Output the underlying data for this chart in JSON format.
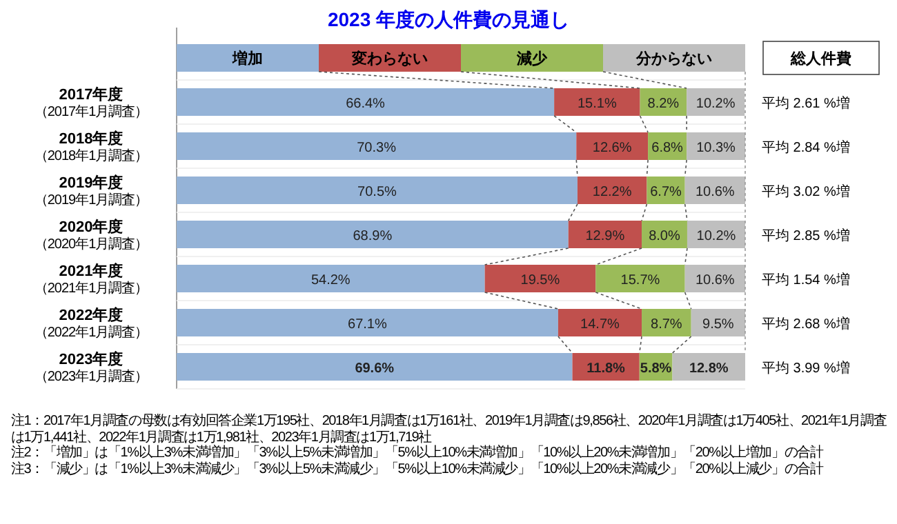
{
  "chart_data": {
    "type": "bar",
    "title": "2023 年度の人件費の見通し",
    "orientation": "horizontal",
    "stacked": true,
    "legend": "top",
    "xlim": [
      0,
      100
    ],
    "tick_labels": "y",
    "categories": [
      "2017年度（2017年1月調査）",
      "2018年度（2018年1月調査）",
      "2019年度（2019年1月調査）",
      "2020年度（2020年1月調査）",
      "2021年度（2021年1月調査）",
      "2022年度（2022年1月調査）",
      "2023年度（2023年1月調査）"
    ],
    "y2label": "総人件費",
    "y2_categories": [
      "平均 2.61 %増",
      "平均 2.84 %増",
      "平均 3.02 %増",
      "平均 2.85 %増",
      "平均 1.54 %増",
      "平均 2.68 %増",
      "平均 3.99 %増"
    ],
    "series": [
      {
        "name": "増加",
        "color": "#95b3d7",
        "values": [
          66.4,
          70.3,
          70.5,
          68.9,
          54.2,
          67.1,
          69.6
        ],
        "value_labels": [
          "66.4%",
          "70.3%",
          "70.5%",
          "68.9%",
          "54.2%",
          "67.1%",
          "69.6%"
        ]
      },
      {
        "name": "変わらない",
        "color": "#c0504d",
        "values": [
          15.1,
          12.6,
          12.2,
          12.9,
          19.5,
          14.7,
          11.8
        ],
        "value_labels": [
          "15.1%",
          "12.6%",
          "12.2%",
          "12.9%",
          "19.5%",
          "14.7%",
          "11.8%"
        ]
      },
      {
        "name": "減少",
        "color": "#9bbb59",
        "values": [
          8.2,
          6.8,
          6.7,
          8.0,
          15.7,
          8.7,
          5.8
        ],
        "value_labels": [
          "8.2%",
          "6.8%",
          "6.7%",
          "8.0%",
          "15.7%",
          "8.7%",
          "5.8%"
        ]
      },
      {
        "name": "分からない",
        "color": "#bfbfbf",
        "values": [
          10.2,
          10.3,
          10.6,
          10.2,
          10.6,
          9.5,
          12.8
        ],
        "value_labels": [
          "10.2%",
          "10.3%",
          "10.6%",
          "10.2%",
          "10.6%",
          "9.5%",
          "12.8%"
        ]
      }
    ],
    "annotations": [
      "注1：2017年1月調査の母数は有効回答企業1万195社、2018年1月調査は1万161社、2019年1月調査は9,856社、2020年1月調査は1万405社、2021年1月調査は1万1,441社、2022年1月調査は1万1,981社、2023年1月調査は1万1,719社",
      "注2：「増加」は「1%以上3%未満増加」「3%以上5%未満増加」「5%以上10%未満増加」「10%以上20%未満増加」「20%以上増加」の合計",
      "注3：「減少」は「1%以上3%未満減少」「3%以上5%未満減少」「5%以上10%未満減少」「10%以上20%未満減少」「20%以上減少」の合計"
    ]
  }
}
